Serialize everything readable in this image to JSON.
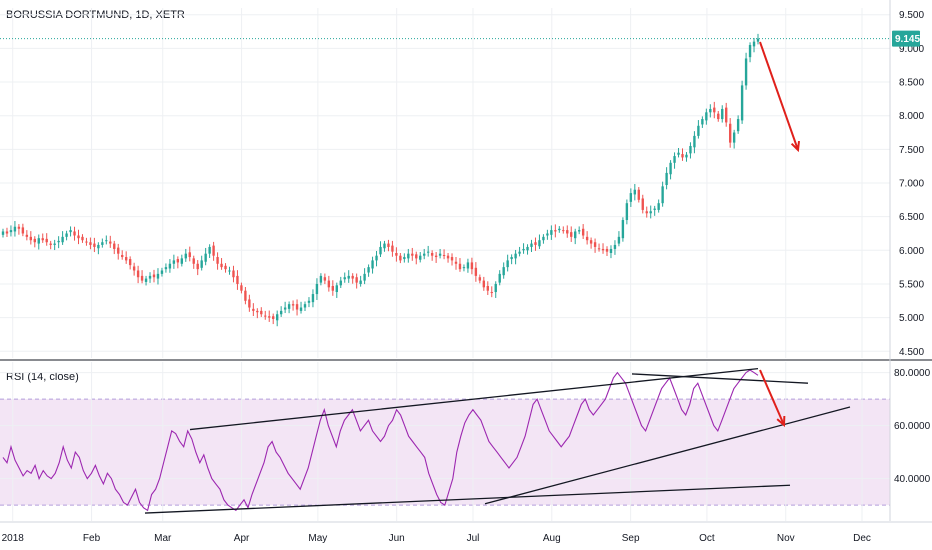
{
  "chart_title": "BORUSSIA DORTMUND, 1D, XETR",
  "rsi_title": "RSI (14, close)",
  "colors": {
    "up": "#26a69a",
    "down": "#ef5350",
    "rsi_line": "#9c27b0",
    "rsi_band": "#f3e5f5",
    "annotation_arrow": "#e0201b",
    "trendline": "#131722",
    "last_price": "#26a69a"
  },
  "chart_data": [
    {
      "type": "candlestick",
      "title": "BORUSSIA DORTMUND, 1D, XETR",
      "x_ticks": [
        "2018",
        "Feb",
        "Mar",
        "Apr",
        "May",
        "Jun",
        "Jul",
        "Aug",
        "Sep",
        "Oct",
        "Nov",
        "Dec"
      ],
      "y_ticks": [
        "4.500",
        "5.000",
        "5.500",
        "6.000",
        "6.500",
        "7.000",
        "7.500",
        "8.000",
        "8.500",
        "9.000",
        "9.500"
      ],
      "ylim": [
        4.4,
        9.6
      ],
      "last_price": 9.145,
      "last_price_label": "9.145",
      "close": [
        6.28,
        6.25,
        6.3,
        6.35,
        6.32,
        6.25,
        6.2,
        6.15,
        6.12,
        6.18,
        6.15,
        6.12,
        6.08,
        6.1,
        6.14,
        6.2,
        6.25,
        6.3,
        6.22,
        6.18,
        6.15,
        6.12,
        6.08,
        6.05,
        6.08,
        6.12,
        6.15,
        6.1,
        6.02,
        5.95,
        5.9,
        5.85,
        5.78,
        5.7,
        5.6,
        5.55,
        5.58,
        5.62,
        5.6,
        5.65,
        5.7,
        5.75,
        5.8,
        5.85,
        5.82,
        5.88,
        5.95,
        5.9,
        5.8,
        5.72,
        5.85,
        5.95,
        6.05,
        5.92,
        5.8,
        5.75,
        5.72,
        5.7,
        5.6,
        5.5,
        5.4,
        5.25,
        5.15,
        5.1,
        5.08,
        5.05,
        5.02,
        5.0,
        4.98,
        5.05,
        5.1,
        5.15,
        5.2,
        5.18,
        5.12,
        5.15,
        5.2,
        5.25,
        5.35,
        5.5,
        5.62,
        5.55,
        5.45,
        5.4,
        5.48,
        5.55,
        5.6,
        5.62,
        5.58,
        5.52,
        5.55,
        5.65,
        5.75,
        5.85,
        5.92,
        6.05,
        6.1,
        6.05,
        5.98,
        5.92,
        5.85,
        5.9,
        5.95,
        5.92,
        5.88,
        5.92,
        5.95,
        5.98,
        5.92,
        5.9,
        5.95,
        5.92,
        5.88,
        5.85,
        5.8,
        5.72,
        5.75,
        5.82,
        5.72,
        5.62,
        5.55,
        5.45,
        5.4,
        5.38,
        5.5,
        5.65,
        5.75,
        5.85,
        5.9,
        5.95,
        5.98,
        6.02,
        6.05,
        6.1,
        6.08,
        6.15,
        6.2,
        6.25,
        6.3,
        6.28,
        6.32,
        6.3,
        6.25,
        6.2,
        6.28,
        6.3,
        6.22,
        6.15,
        6.1,
        6.05,
        6.02,
        6.0,
        5.98,
        6.02,
        6.08,
        6.2,
        6.45,
        6.7,
        6.85,
        6.9,
        6.75,
        6.6,
        6.55,
        6.58,
        6.62,
        6.7,
        6.95,
        7.15,
        7.3,
        7.4,
        7.45,
        7.38,
        7.42,
        7.55,
        7.7,
        7.85,
        7.95,
        8.05,
        8.1,
        8.05,
        7.95,
        8.1,
        7.9,
        7.6,
        7.75,
        7.95,
        8.45,
        8.85,
        9.05,
        9.1,
        9.145
      ],
      "x_range": [
        "2017-12-27",
        "2018-12-12"
      ]
    },
    {
      "type": "line",
      "title": "RSI (14, close)",
      "y_ticks": [
        "40.0000",
        "60.0000",
        "80.0000"
      ],
      "ylim": [
        24,
        84
      ],
      "band": [
        30,
        70
      ],
      "series": [
        {
          "values": [
            48,
            46,
            52,
            47,
            44,
            41,
            43,
            42,
            45,
            40,
            43,
            41,
            40,
            42,
            46,
            52,
            47,
            44,
            50,
            48,
            43,
            40,
            42,
            45,
            41,
            38,
            42,
            40,
            36,
            34,
            31,
            30,
            33,
            36,
            31,
            29,
            28,
            34,
            36,
            40,
            46,
            52,
            58,
            57,
            54,
            52,
            58,
            55,
            50,
            46,
            49,
            44,
            40,
            38,
            36,
            32,
            30,
            29,
            28,
            30,
            32,
            29,
            34,
            38,
            42,
            46,
            52,
            54,
            50,
            48,
            45,
            42,
            40,
            38,
            36,
            40,
            44,
            50,
            56,
            62,
            66,
            60,
            56,
            52,
            58,
            62,
            64,
            66,
            62,
            58,
            60,
            62,
            58,
            56,
            54,
            56,
            60,
            62,
            66,
            64,
            60,
            56,
            54,
            52,
            50,
            48,
            42,
            38,
            34,
            31,
            30,
            35,
            40,
            50,
            56,
            61,
            64,
            66,
            64,
            62,
            58,
            54,
            52,
            50,
            48,
            46,
            44,
            46,
            48,
            52,
            56,
            62,
            68,
            70,
            66,
            62,
            58,
            56,
            54,
            52,
            54,
            56,
            60,
            64,
            68,
            70,
            66,
            64,
            66,
            68,
            70,
            74,
            78,
            80,
            78,
            76,
            72,
            68,
            64,
            60,
            58,
            62,
            66,
            70,
            74,
            76,
            78,
            74,
            70,
            66,
            64,
            68,
            74,
            76,
            72,
            68,
            64,
            60,
            58,
            62,
            66,
            70,
            74,
            76,
            78,
            80,
            81,
            80,
            79
          ]
        }
      ]
    }
  ]
}
